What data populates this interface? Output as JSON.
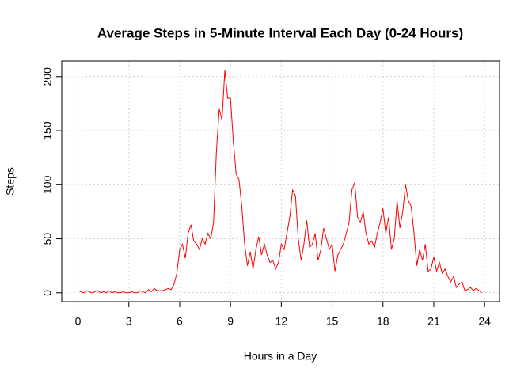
{
  "chart_data": {
    "type": "line",
    "title": "Average Steps in 5-Minute Interval Each Day (0-24 Hours)",
    "x_label": "Hours in a Day",
    "y_label": "Steps",
    "xlim": [
      -0.96,
      24.88
    ],
    "ylim": [
      -8.2,
      214.5
    ],
    "xticks": [
      0,
      3,
      6,
      9,
      12,
      15,
      18,
      21,
      24
    ],
    "yticks": [
      0,
      50,
      100,
      150,
      200
    ],
    "grid": true,
    "series": [
      {
        "name": "Steps",
        "color": "#ff0000",
        "x": [
          0,
          0.1667,
          0.3333,
          0.5,
          0.6667,
          0.8333,
          1,
          1.1667,
          1.3333,
          1.5,
          1.6667,
          1.8333,
          2,
          2.1667,
          2.3333,
          2.5,
          2.6667,
          2.8333,
          3,
          3.1667,
          3.3333,
          3.5,
          3.6667,
          3.8333,
          4,
          4.1667,
          4.3333,
          4.5,
          4.6667,
          4.8333,
          5,
          5.1667,
          5.3333,
          5.5,
          5.6667,
          5.8333,
          6,
          6.1667,
          6.3333,
          6.5,
          6.6667,
          6.8333,
          7,
          7.1667,
          7.3333,
          7.5,
          7.6667,
          7.8333,
          8,
          8.1667,
          8.3333,
          8.5,
          8.6667,
          8.8333,
          9,
          9.1667,
          9.3333,
          9.5,
          9.6667,
          9.8333,
          10,
          10.1667,
          10.3333,
          10.5,
          10.6667,
          10.8333,
          11,
          11.1667,
          11.3333,
          11.5,
          11.6667,
          11.8333,
          12,
          12.1667,
          12.3333,
          12.5,
          12.6667,
          12.8333,
          13,
          13.1667,
          13.3333,
          13.5,
          13.6667,
          13.8333,
          14,
          14.1667,
          14.3333,
          14.5,
          14.6667,
          14.8333,
          15,
          15.1667,
          15.3333,
          15.5,
          15.6667,
          15.8333,
          16,
          16.1667,
          16.3333,
          16.5,
          16.6667,
          16.8333,
          17,
          17.1667,
          17.3333,
          17.5,
          17.6667,
          17.8333,
          18,
          18.1667,
          18.3333,
          18.5,
          18.6667,
          18.8333,
          19,
          19.1667,
          19.3333,
          19.5,
          19.6667,
          19.8333,
          20,
          20.1667,
          20.3333,
          20.5,
          20.6667,
          20.8333,
          21,
          21.1667,
          21.3333,
          21.5,
          21.6667,
          21.8333,
          22,
          22.1667,
          22.3333,
          22.5,
          22.6667,
          22.8333,
          23,
          23.1667,
          23.3333,
          23.5,
          23.6667,
          23.8333
        ],
        "values": [
          2,
          1,
          0,
          2,
          1,
          0,
          1,
          2,
          0,
          1,
          0,
          2,
          0,
          1,
          0,
          0,
          1,
          0,
          0,
          1,
          0,
          0,
          2,
          1,
          0,
          3,
          1,
          4,
          2,
          2,
          2,
          3,
          4,
          3,
          8,
          18,
          40,
          45,
          32,
          55,
          63,
          48,
          45,
          40,
          50,
          45,
          55,
          50,
          65,
          130,
          170,
          160,
          206,
          180,
          180,
          140,
          110,
          105,
          80,
          45,
          25,
          38,
          22,
          40,
          52,
          35,
          45,
          35,
          28,
          30,
          22,
          28,
          45,
          40,
          55,
          70,
          95,
          90,
          50,
          30,
          45,
          67,
          42,
          45,
          55,
          30,
          40,
          60,
          50,
          40,
          45,
          20,
          35,
          40,
          45,
          55,
          65,
          95,
          102,
          70,
          65,
          75,
          55,
          45,
          48,
          42,
          55,
          65,
          78,
          55,
          70,
          40,
          50,
          85,
          60,
          75,
          100,
          85,
          80,
          55,
          25,
          40,
          30,
          45,
          20,
          22,
          33,
          20,
          28,
          18,
          22,
          15,
          10,
          15,
          5,
          8,
          10,
          2,
          3,
          5,
          2,
          4,
          2,
          0
        ]
      }
    ]
  }
}
